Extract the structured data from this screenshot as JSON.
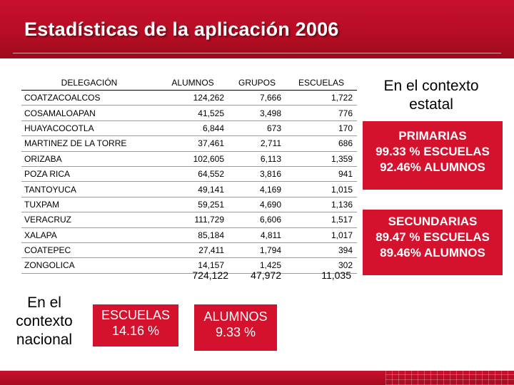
{
  "slide": {
    "title": "Estadísticas de la aplicación 2006"
  },
  "table": {
    "headers": [
      "DELEGACIÓN",
      "ALUMNOS",
      "GRUPOS",
      "ESCUELAS"
    ],
    "rows": [
      [
        "COATZACOALCOS",
        "124,262",
        "7,666",
        "1,722"
      ],
      [
        "COSAMALOAPAN",
        "41,525",
        "3,498",
        "776"
      ],
      [
        "HUAYACOCOTLA",
        "6,844",
        "673",
        "170"
      ],
      [
        "MARTINEZ DE LA TORRE",
        "37,461",
        "2,711",
        "686"
      ],
      [
        "ORIZABA",
        "102,605",
        "6,113",
        "1,359"
      ],
      [
        "POZA RICA",
        "64,552",
        "3,816",
        "941"
      ],
      [
        "TANTOYUCA",
        "49,141",
        "4,169",
        "1,015"
      ],
      [
        "TUXPAM",
        "59,251",
        "4,690",
        "1,136"
      ],
      [
        "VERACRUZ",
        "111,729",
        "6,606",
        "1,517"
      ],
      [
        "XALAPA",
        "85,184",
        "4,811",
        "1,017"
      ],
      [
        "COATEPEC",
        "27,411",
        "1,794",
        "394"
      ],
      [
        "ZONGOLICA",
        "14,157",
        "1,425",
        "302"
      ]
    ],
    "totals": {
      "alumnos": "724,122",
      "grupos": "47,972",
      "escuelas": "11,035"
    }
  },
  "nacional": {
    "line1": "En el",
    "line2": "contexto",
    "line3": "nacional",
    "escuelas_label": "ESCUELAS",
    "escuelas_value": "14.16 %",
    "alumnos_label": "ALUMNOS",
    "alumnos_value": "9.33 %"
  },
  "estatal": {
    "line1": "En el contexto",
    "line2": "estatal",
    "primarias": {
      "label": "PRIMARIAS",
      "escuelas": "99.33 % ESCUELAS",
      "alumnos": "92.46% ALUMNOS"
    },
    "secundarias": {
      "label": "SECUNDARIAS",
      "escuelas": "89.47 % ESCUELAS",
      "alumnos": "89.46% ALUMNOS"
    }
  },
  "colors": {
    "brand_red": "#c8102e",
    "box_red": "#d4122e",
    "text": "#000000",
    "on_red": "#ffffff"
  }
}
